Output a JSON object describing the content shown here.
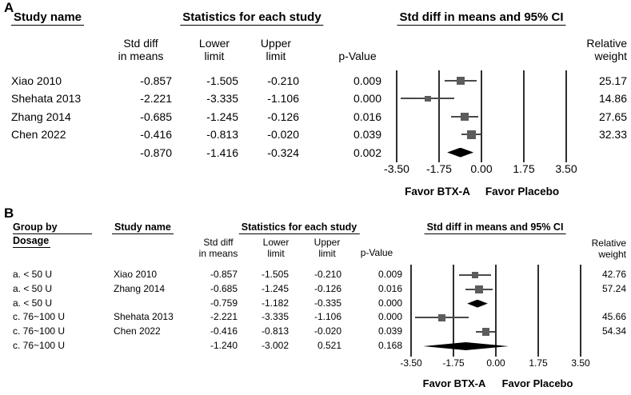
{
  "chart_data": [
    {
      "type": "forest",
      "panel_label": "A",
      "effect_measure": "Std diff in means",
      "headers": {
        "study": "Study name",
        "stats": "Statistics for each study",
        "plot": "Std diff in means and 95% CI"
      },
      "subheaders": {
        "std_diff": "Std diff\nin means",
        "lower": "Lower\nlimit",
        "upper": "Upper\nlimit",
        "p": "p-Value",
        "weight": "Relative\nweight"
      },
      "axis": {
        "min": -3.5,
        "max": 3.5,
        "tick_labels": [
          "-3.50",
          "-1.75",
          "0.00",
          "1.75",
          "3.50"
        ],
        "tick_values": [
          -3.5,
          -1.75,
          0,
          1.75,
          3.5
        ]
      },
      "xlabel_left": "Favor BTX-A",
      "xlabel_right": "Favor Placebo",
      "rows": [
        {
          "study": "Xiao 2010",
          "std_diff": "-0.857",
          "lower": "-1.505",
          "upper": "-0.210",
          "p": "0.009",
          "weight": "25.17",
          "marker": "square",
          "value": -0.857,
          "ci_low": -1.505,
          "ci_high": -0.21,
          "weight_val": 25.17
        },
        {
          "study": "Shehata 2013",
          "std_diff": "-2.221",
          "lower": "-3.335",
          "upper": "-1.106",
          "p": "0.000",
          "weight": "14.86",
          "marker": "square",
          "value": -2.221,
          "ci_low": -3.335,
          "ci_high": -1.106,
          "weight_val": 14.86
        },
        {
          "study": "Zhang 2014",
          "std_diff": "-0.685",
          "lower": "-1.245",
          "upper": "-0.126",
          "p": "0.016",
          "weight": "27.65",
          "marker": "square",
          "value": -0.685,
          "ci_low": -1.245,
          "ci_high": -0.126,
          "weight_val": 27.65
        },
        {
          "study": "Chen 2022",
          "std_diff": "-0.416",
          "lower": "-0.813",
          "upper": "-0.020",
          "p": "0.039",
          "weight": "32.33",
          "marker": "square",
          "value": -0.416,
          "ci_low": -0.813,
          "ci_high": -0.02,
          "weight_val": 32.33
        },
        {
          "study": "",
          "std_diff": "-0.870",
          "lower": "-1.416",
          "upper": "-0.324",
          "p": "0.002",
          "weight": "",
          "marker": "diamond",
          "value": -0.87,
          "ci_low": -1.416,
          "ci_high": -0.324
        }
      ]
    },
    {
      "type": "forest",
      "panel_label": "B",
      "effect_measure": "Std diff in means",
      "headers": {
        "group_line1": "Group by",
        "group_line2": "Dosage",
        "study": "Study name",
        "stats": "Statistics for each study",
        "plot": "Std diff in means and 95% CI"
      },
      "subheaders": {
        "std_diff": "Std diff\nin means",
        "lower": "Lower\nlimit",
        "upper": "Upper\nlimit",
        "p": "p-Value",
        "weight": "Relative\nweight"
      },
      "axis": {
        "min": -3.5,
        "max": 3.5,
        "tick_labels": [
          "-3.50",
          "-1.75",
          "0.00",
          "1.75",
          "3.50"
        ],
        "tick_values": [
          -3.5,
          -1.75,
          0,
          1.75,
          3.5
        ]
      },
      "xlabel_left": "Favor BTX-A",
      "xlabel_right": "Favor Placebo",
      "rows": [
        {
          "group": "a. < 50 U",
          "study": "Xiao 2010",
          "std_diff": "-0.857",
          "lower": "-1.505",
          "upper": "-0.210",
          "p": "0.009",
          "weight": "42.76",
          "marker": "square",
          "value": -0.857,
          "ci_low": -1.505,
          "ci_high": -0.21,
          "weight_val": 42.76
        },
        {
          "group": "a. < 50 U",
          "study": "Zhang 2014",
          "std_diff": "-0.685",
          "lower": "-1.245",
          "upper": "-0.126",
          "p": "0.016",
          "weight": "57.24",
          "marker": "square",
          "value": -0.685,
          "ci_low": -1.245,
          "ci_high": -0.126,
          "weight_val": 57.24
        },
        {
          "group": "a. < 50 U",
          "study": "",
          "std_diff": "-0.759",
          "lower": "-1.182",
          "upper": "-0.335",
          "p": "0.000",
          "weight": "",
          "marker": "diamond",
          "value": -0.759,
          "ci_low": -1.182,
          "ci_high": -0.335
        },
        {
          "group": "c. 76~100 U",
          "study": "Shehata 2013",
          "std_diff": "-2.221",
          "lower": "-3.335",
          "upper": "-1.106",
          "p": "0.000",
          "weight": "45.66",
          "marker": "square",
          "value": -2.221,
          "ci_low": -3.335,
          "ci_high": -1.106,
          "weight_val": 45.66
        },
        {
          "group": "c. 76~100 U",
          "study": "Chen 2022",
          "std_diff": "-0.416",
          "lower": "-0.813",
          "upper": "-0.020",
          "p": "0.039",
          "weight": "54.34",
          "marker": "square",
          "value": -0.416,
          "ci_low": -0.813,
          "ci_high": -0.02,
          "weight_val": 54.34
        },
        {
          "group": "c. 76~100 U",
          "study": "",
          "std_diff": "-1.240",
          "lower": "-3.002",
          "upper": "0.521",
          "p": "0.168",
          "weight": "",
          "marker": "diamond",
          "value": -1.24,
          "ci_low": -3.002,
          "ci_high": 0.521
        }
      ]
    }
  ],
  "colors": {
    "square": "#5c5c5c",
    "ci_line": "#4a4a4a",
    "diamond": "#000000",
    "gridline": "#2e2e2e",
    "text": "#000000",
    "background": "#ffffff"
  }
}
